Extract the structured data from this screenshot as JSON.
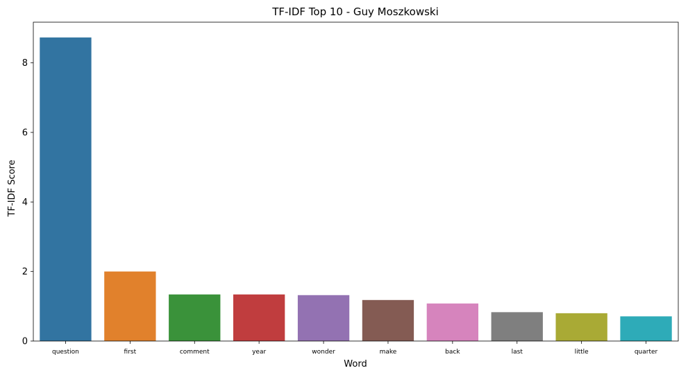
{
  "chart_data": {
    "type": "bar",
    "title": "TF-IDF Top 10 - Guy Moszkowski",
    "xlabel": "Word",
    "ylabel": "TF-IDF Score",
    "categories": [
      "question",
      "first",
      "comment",
      "year",
      "wonder",
      "make",
      "back",
      "last",
      "little",
      "quarter"
    ],
    "values": [
      8.73,
      2.0,
      1.34,
      1.34,
      1.32,
      1.18,
      1.08,
      0.83,
      0.8,
      0.71
    ],
    "colors": [
      "#3274a1",
      "#e1812c",
      "#3a923a",
      "#c03d3e",
      "#9372b2",
      "#845b53",
      "#d684bd",
      "#7f7f7f",
      "#a9aa35",
      "#2eabb8"
    ],
    "ylim": [
      0,
      9.17
    ],
    "yticks": [
      0,
      2,
      4,
      6,
      8
    ],
    "grid": false,
    "legend": "none"
  }
}
